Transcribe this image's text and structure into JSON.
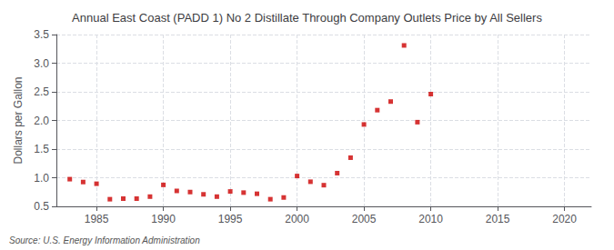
{
  "chart_data": {
    "type": "scatter",
    "title": "Annual East Coast (PADD 1) No 2 Distillate Through Company Outlets Price by All Sellers",
    "ylabel": "Dollars per Gallon",
    "source": "Source: U.S. Energy Information Administration",
    "color": "#cc0000",
    "marker": "square",
    "x": [
      1983,
      1984,
      1985,
      1986,
      1987,
      1988,
      1989,
      1990,
      1991,
      1992,
      1993,
      1994,
      1995,
      1996,
      1997,
      1998,
      1999,
      2000,
      2001,
      2002,
      2003,
      2004,
      2005,
      2006,
      2007,
      2008,
      2009,
      2010
    ],
    "values": [
      0.975,
      0.925,
      0.895,
      0.625,
      0.635,
      0.635,
      0.67,
      0.875,
      0.77,
      0.75,
      0.71,
      0.67,
      0.76,
      0.74,
      0.72,
      0.625,
      0.655,
      1.03,
      0.93,
      0.87,
      1.08,
      1.35,
      1.93,
      2.18,
      2.33,
      3.31,
      1.97,
      2.46
    ],
    "xlim": [
      1982,
      2022
    ],
    "xticks": [
      1985,
      1990,
      1995,
      2000,
      2005,
      2010,
      2015,
      2020
    ],
    "ylim": [
      0.5,
      3.5
    ],
    "yticks": [
      0.5,
      {
        "value": 1.0,
        "label": "1.0"
      },
      1.5,
      {
        "value": 2.0,
        "label": "2.0"
      },
      2.5,
      {
        "value": 3.0,
        "label": "3.0"
      },
      3.5
    ],
    "grid": true
  }
}
